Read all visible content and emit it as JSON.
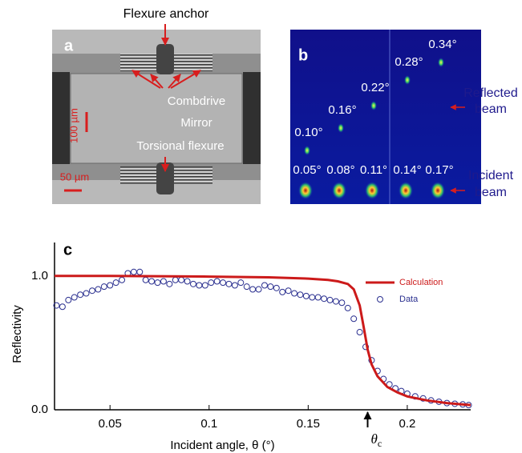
{
  "panel_a": {
    "label": "a",
    "flexure_anchor": "Flexure anchor",
    "combdrive": "Combdrive",
    "mirror": "Mirror",
    "torsional_flexure": "Torsional flexure",
    "scale_100": "100 µm",
    "scale_50": "50 µm"
  },
  "panel_b": {
    "label": "b",
    "reflected_angles": [
      "0.10°",
      "0.16°",
      "0.22°",
      "0.28°",
      "0.34°"
    ],
    "incident_angles": [
      "0.05°",
      "0.08°",
      "0.11°",
      "0.14°",
      "0.17°"
    ],
    "reflected_label": [
      "Reflected",
      "beam"
    ],
    "incident_label": [
      "Incident",
      "beam"
    ]
  },
  "chart_data": {
    "type": "line",
    "panel_label": "c",
    "x_label": "Incident angle, θ (°)",
    "y_label": "Reflectivity",
    "xlim": [
      0.022,
      0.232
    ],
    "ylim": [
      0,
      1.25
    ],
    "xticks": [
      0.05,
      0.1,
      0.15,
      0.2
    ],
    "yticks": [
      {
        "value": 0,
        "label": "0.0"
      },
      {
        "value": 1,
        "label": "1.0"
      }
    ],
    "legend": "upper right",
    "annotation": {
      "symbol": "θ",
      "subscript": "c",
      "x": 0.18
    },
    "series": [
      {
        "name": "Calculation",
        "type": "line",
        "color": "#cc1a1a",
        "x": [
          0.022,
          0.05,
          0.1,
          0.13,
          0.15,
          0.16,
          0.165,
          0.17,
          0.173,
          0.176,
          0.178,
          0.18,
          0.182,
          0.185,
          0.19,
          0.195,
          0.2,
          0.21,
          0.22,
          0.232
        ],
        "values": [
          1.0,
          1.0,
          0.995,
          0.99,
          0.98,
          0.97,
          0.96,
          0.94,
          0.9,
          0.78,
          0.62,
          0.45,
          0.34,
          0.25,
          0.17,
          0.13,
          0.1,
          0.07,
          0.05,
          0.035
        ]
      },
      {
        "name": "Data",
        "type": "scatter",
        "color": "#2a2f8f",
        "x": [
          0.023,
          0.026,
          0.029,
          0.032,
          0.035,
          0.038,
          0.041,
          0.044,
          0.047,
          0.05,
          0.053,
          0.056,
          0.059,
          0.062,
          0.065,
          0.068,
          0.071,
          0.074,
          0.077,
          0.08,
          0.083,
          0.086,
          0.089,
          0.092,
          0.095,
          0.098,
          0.101,
          0.104,
          0.107,
          0.11,
          0.113,
          0.116,
          0.119,
          0.122,
          0.125,
          0.128,
          0.131,
          0.134,
          0.137,
          0.14,
          0.143,
          0.146,
          0.149,
          0.152,
          0.155,
          0.158,
          0.161,
          0.164,
          0.167,
          0.17,
          0.173,
          0.176,
          0.179,
          0.182,
          0.185,
          0.188,
          0.191,
          0.194,
          0.197,
          0.2,
          0.204,
          0.208,
          0.212,
          0.216,
          0.22,
          0.224,
          0.228,
          0.231
        ],
        "values": [
          0.78,
          0.77,
          0.82,
          0.84,
          0.86,
          0.87,
          0.89,
          0.9,
          0.92,
          0.93,
          0.95,
          0.97,
          1.02,
          1.03,
          1.03,
          0.97,
          0.96,
          0.95,
          0.96,
          0.94,
          0.97,
          0.97,
          0.96,
          0.94,
          0.93,
          0.93,
          0.95,
          0.96,
          0.95,
          0.94,
          0.93,
          0.95,
          0.92,
          0.9,
          0.9,
          0.93,
          0.92,
          0.91,
          0.88,
          0.89,
          0.87,
          0.86,
          0.85,
          0.84,
          0.84,
          0.83,
          0.82,
          0.81,
          0.8,
          0.76,
          0.68,
          0.58,
          0.47,
          0.37,
          0.29,
          0.23,
          0.19,
          0.16,
          0.14,
          0.12,
          0.1,
          0.085,
          0.07,
          0.06,
          0.05,
          0.045,
          0.04,
          0.035
        ]
      }
    ]
  }
}
